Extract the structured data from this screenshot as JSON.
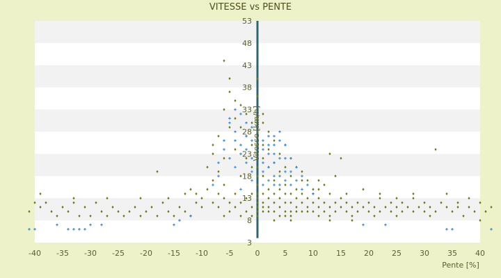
{
  "colors": {
    "background": "#eef2c8",
    "plot_band_light": "#ffffff",
    "plot_band_dark": "#f2f2f2",
    "series_a": "#6b7a10",
    "series_b": "#3a8ed6",
    "zero_axis": "#2e6670"
  },
  "chart_data": {
    "type": "scatter",
    "title": "VITESSE vs PENTE",
    "xlabel": "Pente [%]",
    "ylabel": "Vitesse [km/h]",
    "xlim": [
      -40,
      40
    ],
    "ylim": [
      3,
      53
    ],
    "x_ticks": [
      "-40",
      "-35",
      "-30",
      "-25",
      "-20",
      "-15",
      "-10",
      "-5",
      "0",
      "5",
      "10",
      "15",
      "20",
      "25",
      "30",
      "35",
      "40"
    ],
    "y_ticks": [
      "3",
      "8",
      "13",
      "18",
      "23",
      "28",
      "33",
      "38",
      "43",
      "48",
      "53"
    ],
    "grid": "horizontal bands",
    "legend": "none",
    "series": [
      {
        "marker": "diamond",
        "color": "#6b7a10",
        "points": [
          [
            -41,
            10
          ],
          [
            -40,
            12
          ],
          [
            -39,
            11
          ],
          [
            -38,
            12
          ],
          [
            -37,
            10
          ],
          [
            -36,
            9
          ],
          [
            -35,
            11
          ],
          [
            -34,
            10
          ],
          [
            -33,
            12
          ],
          [
            -32,
            9
          ],
          [
            -31,
            11
          ],
          [
            -30,
            9
          ],
          [
            -29,
            12
          ],
          [
            -28,
            10
          ],
          [
            -27,
            9
          ],
          [
            -26,
            11
          ],
          [
            -25,
            10
          ],
          [
            -24,
            9
          ],
          [
            -23,
            10
          ],
          [
            -22,
            11
          ],
          [
            -21,
            9
          ],
          [
            -20,
            10
          ],
          [
            -19,
            11
          ],
          [
            -18,
            9
          ],
          [
            -17,
            12
          ],
          [
            -16,
            10
          ],
          [
            -15,
            9
          ],
          [
            -14,
            11
          ],
          [
            -13,
            10
          ],
          [
            -12,
            9
          ],
          [
            -11,
            12
          ],
          [
            -10,
            11
          ],
          [
            -39,
            14
          ],
          [
            -33,
            13
          ],
          [
            -27,
            13
          ],
          [
            -21,
            13
          ],
          [
            -16,
            13
          ],
          [
            -13,
            14
          ],
          [
            -12,
            15
          ],
          [
            -11,
            14
          ],
          [
            -10,
            13
          ],
          [
            -9,
            15
          ],
          [
            -8,
            17
          ],
          [
            -8,
            12
          ],
          [
            -7,
            14
          ],
          [
            -7,
            11
          ],
          [
            -6,
            13
          ],
          [
            -6,
            16
          ],
          [
            -6,
            9
          ],
          [
            -5,
            12
          ],
          [
            -5,
            10
          ],
          [
            -4,
            14
          ],
          [
            -4,
            11
          ],
          [
            -3,
            12
          ],
          [
            -3,
            9
          ],
          [
            -2,
            13
          ],
          [
            -2,
            10
          ],
          [
            -1,
            11
          ],
          [
            -1,
            14
          ],
          [
            -1,
            9
          ],
          [
            -9,
            20
          ],
          [
            -8,
            25
          ],
          [
            -8,
            23
          ],
          [
            -7,
            27
          ],
          [
            -6,
            33
          ],
          [
            -5,
            37
          ],
          [
            -5,
            40
          ],
          [
            -4,
            35
          ],
          [
            -4,
            31
          ],
          [
            -3,
            34
          ],
          [
            -3,
            29
          ],
          [
            -2,
            32
          ],
          [
            -2,
            27
          ],
          [
            -1,
            30
          ],
          [
            -1,
            25
          ],
          [
            -5,
            29
          ],
          [
            -6,
            22
          ],
          [
            -7,
            19
          ],
          [
            -2,
            22
          ],
          [
            -1,
            20
          ],
          [
            -3,
            18
          ],
          [
            -4,
            24
          ],
          [
            -6,
            44
          ],
          [
            -18,
            19
          ],
          [
            0,
            9
          ],
          [
            0,
            10
          ],
          [
            0,
            11
          ],
          [
            0,
            12
          ],
          [
            0,
            13
          ],
          [
            0,
            14
          ],
          [
            0,
            16
          ],
          [
            0,
            18
          ],
          [
            0,
            20
          ],
          [
            0,
            22
          ],
          [
            0,
            25
          ],
          [
            0,
            28
          ],
          [
            0,
            31
          ],
          [
            0,
            36
          ],
          [
            0,
            40
          ],
          [
            1,
            10
          ],
          [
            1,
            12
          ],
          [
            1,
            14
          ],
          [
            1,
            11
          ],
          [
            1,
            25
          ],
          [
            1,
            30
          ],
          [
            1,
            32
          ],
          [
            1,
            22
          ],
          [
            1,
            18
          ],
          [
            2,
            11
          ],
          [
            2,
            10
          ],
          [
            2,
            13
          ],
          [
            2,
            15
          ],
          [
            2,
            20
          ],
          [
            2,
            24
          ],
          [
            2,
            28
          ],
          [
            3,
            10
          ],
          [
            3,
            12
          ],
          [
            3,
            14
          ],
          [
            3,
            17
          ],
          [
            3,
            21
          ],
          [
            3,
            26
          ],
          [
            4,
            9
          ],
          [
            4,
            11
          ],
          [
            4,
            13
          ],
          [
            4,
            15
          ],
          [
            4,
            19
          ],
          [
            4,
            23
          ],
          [
            5,
            10
          ],
          [
            5,
            12
          ],
          [
            5,
            14
          ],
          [
            5,
            16
          ],
          [
            5,
            20
          ],
          [
            5,
            25
          ],
          [
            6,
            9
          ],
          [
            6,
            10
          ],
          [
            6,
            12
          ],
          [
            6,
            14
          ],
          [
            6,
            18
          ],
          [
            6,
            22
          ],
          [
            7,
            10
          ],
          [
            7,
            11
          ],
          [
            7,
            13
          ],
          [
            7,
            15
          ],
          [
            7,
            20
          ],
          [
            8,
            10
          ],
          [
            8,
            12
          ],
          [
            8,
            14
          ],
          [
            8,
            17
          ],
          [
            9,
            10
          ],
          [
            9,
            11
          ],
          [
            9,
            13
          ],
          [
            10,
            10
          ],
          [
            10,
            12
          ],
          [
            10,
            15
          ],
          [
            11,
            9
          ],
          [
            11,
            11
          ],
          [
            11,
            13
          ],
          [
            11,
            17
          ],
          [
            12,
            10
          ],
          [
            12,
            12
          ],
          [
            13,
            9
          ],
          [
            13,
            11
          ],
          [
            13,
            14
          ],
          [
            14,
            10
          ],
          [
            14,
            12
          ],
          [
            15,
            11
          ],
          [
            15,
            13
          ],
          [
            16,
            10
          ],
          [
            16,
            12
          ],
          [
            17,
            9
          ],
          [
            17,
            11
          ],
          [
            18,
            10
          ],
          [
            18,
            12
          ],
          [
            19,
            11
          ],
          [
            20,
            10
          ],
          [
            20,
            12
          ],
          [
            21,
            9
          ],
          [
            21,
            11
          ],
          [
            22,
            10
          ],
          [
            22,
            13
          ],
          [
            23,
            11
          ],
          [
            24,
            10
          ],
          [
            24,
            12
          ],
          [
            25,
            9
          ],
          [
            25,
            11
          ],
          [
            26,
            10
          ],
          [
            26,
            12
          ],
          [
            27,
            11
          ],
          [
            28,
            10
          ],
          [
            28,
            13
          ],
          [
            29,
            11
          ],
          [
            30,
            10
          ],
          [
            30,
            12
          ],
          [
            31,
            9
          ],
          [
            31,
            11
          ],
          [
            32,
            10
          ],
          [
            33,
            12
          ],
          [
            34,
            11
          ],
          [
            35,
            10
          ],
          [
            36,
            12
          ],
          [
            37,
            9
          ],
          [
            38,
            11
          ],
          [
            39,
            10
          ],
          [
            40,
            12
          ],
          [
            41,
            10
          ],
          [
            42,
            11
          ],
          [
            13,
            23
          ],
          [
            15,
            22
          ],
          [
            14,
            18
          ],
          [
            12,
            16
          ],
          [
            9,
            17
          ],
          [
            8,
            19
          ],
          [
            32,
            24
          ],
          [
            25,
            13
          ],
          [
            34,
            14
          ],
          [
            38,
            13
          ],
          [
            19,
            15
          ],
          [
            16,
            14
          ],
          [
            22,
            14
          ],
          [
            10,
            14
          ],
          [
            11,
            15
          ],
          [
            36,
            11
          ],
          [
            40,
            8
          ],
          [
            17,
            8
          ],
          [
            13,
            8
          ],
          [
            5,
            9
          ],
          [
            6,
            8
          ],
          [
            3,
            8
          ],
          [
            28,
            14
          ]
        ]
      },
      {
        "marker": "cross",
        "color": "#3a8ed6",
        "points": [
          [
            -5,
            31
          ],
          [
            -5,
            30
          ],
          [
            -4,
            28
          ],
          [
            -4,
            26
          ],
          [
            -3,
            25
          ],
          [
            -3,
            23
          ],
          [
            -2,
            24
          ],
          [
            -2,
            21
          ],
          [
            -1,
            22
          ],
          [
            -1,
            19
          ],
          [
            -1,
            17
          ],
          [
            -6,
            26
          ],
          [
            -6,
            24
          ],
          [
            -7,
            21
          ],
          [
            -7,
            18
          ],
          [
            -8,
            16
          ],
          [
            -4,
            33
          ],
          [
            -3,
            32
          ],
          [
            -2,
            30
          ],
          [
            -2,
            27
          ],
          [
            -1,
            29
          ],
          [
            -1,
            26
          ],
          [
            -4,
            20
          ],
          [
            -5,
            22
          ],
          [
            -3,
            15
          ],
          [
            1,
            24
          ],
          [
            1,
            21
          ],
          [
            1,
            19
          ],
          [
            1,
            16
          ],
          [
            2,
            25
          ],
          [
            2,
            23
          ],
          [
            2,
            20
          ],
          [
            2,
            17
          ],
          [
            3,
            25
          ],
          [
            3,
            23
          ],
          [
            3,
            21
          ],
          [
            3,
            18
          ],
          [
            3,
            16
          ],
          [
            4,
            28
          ],
          [
            4,
            26
          ],
          [
            4,
            22
          ],
          [
            4,
            18
          ],
          [
            4,
            16
          ],
          [
            5,
            25
          ],
          [
            5,
            22
          ],
          [
            5,
            19
          ],
          [
            5,
            17
          ],
          [
            6,
            22
          ],
          [
            6,
            19
          ],
          [
            6,
            16
          ],
          [
            7,
            20
          ],
          [
            7,
            17
          ],
          [
            8,
            18
          ],
          [
            8,
            15
          ],
          [
            9,
            16
          ],
          [
            10,
            14
          ],
          [
            2,
            27
          ],
          [
            1,
            26
          ],
          [
            3,
            27
          ],
          [
            -41,
            6
          ],
          [
            -40,
            6
          ],
          [
            -36,
            7
          ],
          [
            -34,
            6
          ],
          [
            -32,
            6
          ],
          [
            -31,
            6
          ],
          [
            -30,
            7
          ],
          [
            -15,
            7
          ],
          [
            -14,
            8
          ],
          [
            -12,
            9
          ],
          [
            19,
            7
          ],
          [
            23,
            7
          ],
          [
            34,
            6
          ],
          [
            35,
            6
          ],
          [
            42,
            6
          ],
          [
            -33,
            6
          ],
          [
            -28,
            7
          ]
        ]
      }
    ]
  }
}
